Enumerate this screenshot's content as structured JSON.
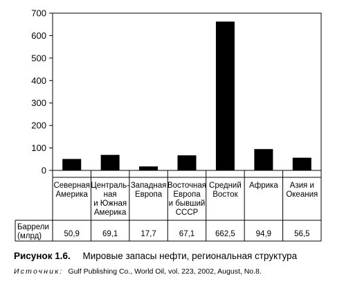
{
  "chart_data": {
    "type": "table",
    "chart_kind": "bar",
    "categories": [
      [
        "Северная",
        "Америка"
      ],
      [
        "Централь-",
        "ная",
        "и Южная",
        "Америка"
      ],
      [
        "Западная",
        "Европа"
      ],
      [
        "Восточная",
        "Европа",
        "и бывший",
        "СССР"
      ],
      [
        "Средний",
        "Восток"
      ],
      [
        "Африка"
      ],
      [
        "Азия и",
        "Океания"
      ]
    ],
    "values": [
      50.9,
      69.1,
      17.7,
      67.1,
      662.5,
      94.9,
      56.5
    ],
    "value_labels": [
      "50,9",
      "69,1",
      "17,7",
      "67,1",
      "662,5",
      "94,9",
      "56,5"
    ],
    "row_label": [
      "Баррели",
      "(млрд)"
    ],
    "ylim": [
      0,
      700
    ],
    "yticks": [
      0,
      100,
      200,
      300,
      400,
      500,
      600,
      700
    ],
    "grid": false,
    "bar_color": "#000000",
    "title": "",
    "xlabel": "",
    "ylabel": ""
  },
  "caption": {
    "number": "Рисунок 1.6.",
    "text": "Мировые запасы нефти, региональная структура"
  },
  "source": {
    "label": "Источник:",
    "text": "Gulf Publishing Co., World Oil, vol. 223, 2002, August, No.8."
  }
}
